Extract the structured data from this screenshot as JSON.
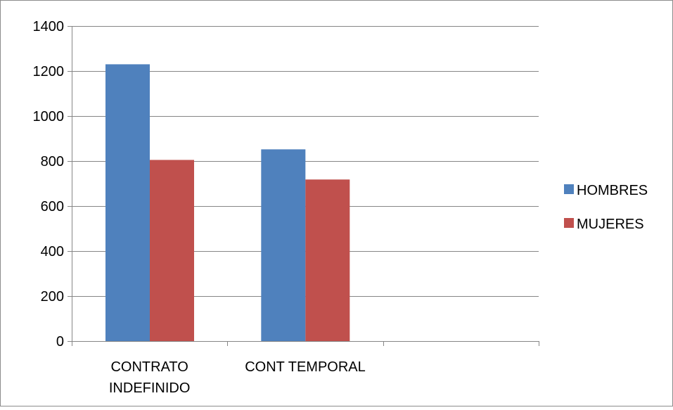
{
  "chart_data": {
    "type": "bar",
    "categories": [
      [
        "CONTRATO",
        "INDEFINIDO"
      ],
      [
        "CONT TEMPORAL"
      ],
      [
        ""
      ]
    ],
    "series": [
      {
        "name": "HOMBRES",
        "color": "#4F81BD",
        "values": [
          1230,
          852,
          null
        ]
      },
      {
        "name": "MUJERES",
        "color": "#C0504D",
        "values": [
          805,
          718,
          null
        ]
      }
    ],
    "title": "",
    "xlabel": "",
    "ylabel": "",
    "ylim": [
      0,
      1400
    ],
    "yticks": [
      0,
      200,
      400,
      600,
      800,
      1000,
      1200,
      1400
    ],
    "grid": true,
    "legend": "right"
  }
}
